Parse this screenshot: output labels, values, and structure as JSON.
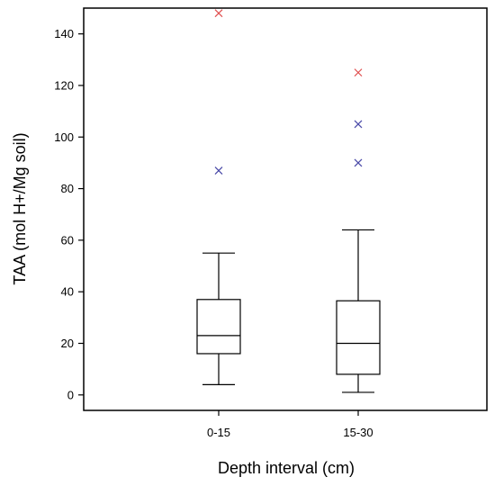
{
  "chart_data": {
    "type": "box",
    "xlabel": "Depth interval (cm)",
    "ylabel": "TAA (mol H+/Mg soil)",
    "ylim": [
      -6,
      150
    ],
    "yticks": [
      0,
      20,
      40,
      60,
      80,
      100,
      120,
      140
    ],
    "grid": false,
    "categories": [
      "0-15",
      "15-30"
    ],
    "boxes": [
      {
        "category": "0-15",
        "whisker_low": 4,
        "q1": 16,
        "median": 23,
        "q3": 37,
        "whisker_high": 55
      },
      {
        "category": "15-30",
        "whisker_low": 1,
        "q1": 8,
        "median": 20,
        "q3": 36.5,
        "whisker_high": 64
      }
    ],
    "outliers": [
      {
        "category": "0-15",
        "value": 148,
        "color": "#e05050"
      },
      {
        "category": "0-15",
        "value": 87,
        "color": "#4a4aa8"
      },
      {
        "category": "15-30",
        "value": 125,
        "color": "#e05050"
      },
      {
        "category": "15-30",
        "value": 105,
        "color": "#4a4aa8"
      },
      {
        "category": "15-30",
        "value": 90,
        "color": "#4a4aa8"
      }
    ]
  }
}
